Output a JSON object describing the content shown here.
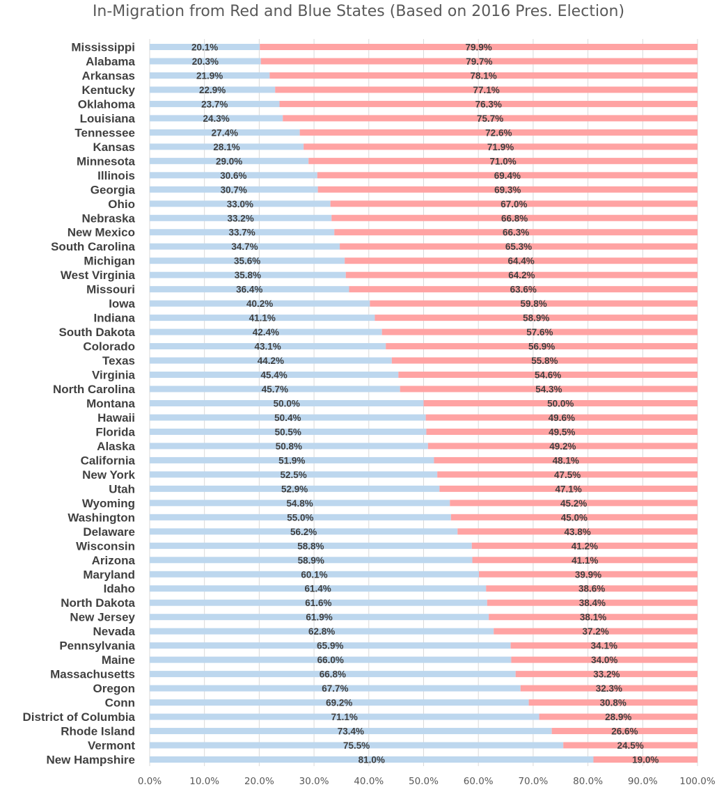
{
  "chart_data": {
    "type": "bar",
    "orientation": "horizontal",
    "stacked": true,
    "title": "In-Migration from Red and Blue States (Based on 2016 Pres. Election)",
    "xlim": [
      0,
      100
    ],
    "x_ticks": [
      "0.0%",
      "10.0%",
      "20.0%",
      "30.0%",
      "40.0%",
      "50.0%",
      "60.0%",
      "70.0%",
      "80.0%",
      "90.0%",
      "100.0%"
    ],
    "grid": true,
    "legend": "none",
    "colors": {
      "blue": "#BDD7EE",
      "red": "#FFA3A3",
      "grid": "#D9D9D9",
      "text": "#404040"
    },
    "categories": [
      "Mississippi",
      "Alabama",
      "Arkansas",
      "Kentucky",
      "Oklahoma",
      "Louisiana",
      "Tennessee",
      "Kansas",
      "Minnesota",
      "Illinois",
      "Georgia",
      "Ohio",
      "Nebraska",
      "New Mexico",
      "South Carolina",
      "Michigan",
      "West Virginia",
      "Missouri",
      "Iowa",
      "Indiana",
      "South Dakota",
      "Colorado",
      "Texas",
      "Virginia",
      "North Carolina",
      "Montana",
      "Hawaii",
      "Florida",
      "Alaska",
      "California",
      "New York",
      "Utah",
      "Wyoming",
      "Washington",
      "Delaware",
      "Wisconsin",
      "Arizona",
      "Maryland",
      "Idaho",
      "North Dakota",
      "New Jersey",
      "Nevada",
      "Pennsylvania",
      "Maine",
      "Massachusetts",
      "Oregon",
      "Conn",
      "District of Columbia",
      "Rhode Island",
      "Vermont",
      "New Hampshire"
    ],
    "series": [
      {
        "color": "#BDD7EE",
        "values": [
          20.1,
          20.3,
          21.9,
          22.9,
          23.7,
          24.3,
          27.4,
          28.1,
          29.0,
          30.6,
          30.7,
          33.0,
          33.2,
          33.7,
          34.7,
          35.6,
          35.8,
          36.4,
          40.2,
          41.1,
          42.4,
          43.1,
          44.2,
          45.4,
          45.7,
          50.0,
          50.4,
          50.5,
          50.8,
          51.9,
          52.5,
          52.9,
          54.8,
          55.0,
          56.2,
          58.8,
          58.9,
          60.1,
          61.4,
          61.6,
          61.9,
          62.8,
          65.9,
          66.0,
          66.8,
          67.7,
          69.2,
          71.1,
          73.4,
          75.5,
          81.0
        ]
      },
      {
        "color": "#FFA3A3",
        "values": [
          79.9,
          79.7,
          78.1,
          77.1,
          76.3,
          75.7,
          72.6,
          71.9,
          71.0,
          69.4,
          69.3,
          67.0,
          66.8,
          66.3,
          65.3,
          64.4,
          64.2,
          63.6,
          59.8,
          58.9,
          57.6,
          56.9,
          55.8,
          54.6,
          54.3,
          50.0,
          49.6,
          49.5,
          49.2,
          48.1,
          47.5,
          47.1,
          45.2,
          45.0,
          43.8,
          41.2,
          41.1,
          39.9,
          38.6,
          38.4,
          38.1,
          37.2,
          34.1,
          34.0,
          33.2,
          32.3,
          30.8,
          28.9,
          26.6,
          24.5,
          19.0
        ]
      }
    ]
  }
}
